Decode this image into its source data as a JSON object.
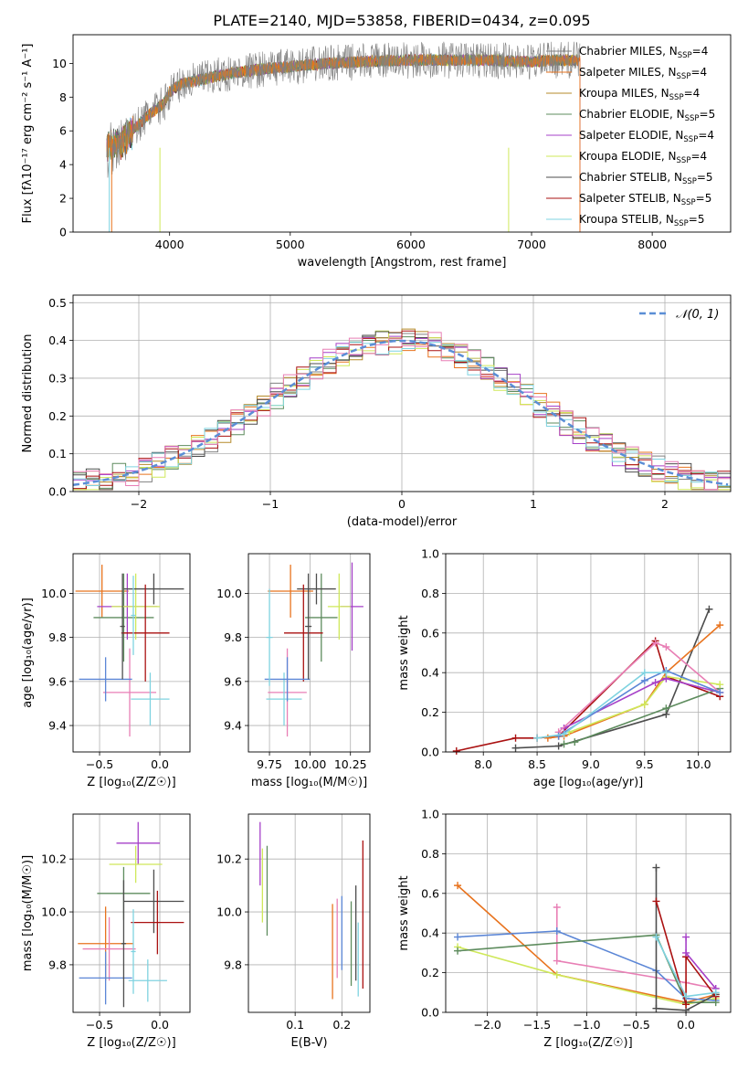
{
  "title": "PLATE=2140, MJD=53858, FIBERID=0434, z=0.095",
  "colors": {
    "chabrier_miles": "#808080",
    "salpeter_miles": "#e8731e",
    "kroupa_miles": "#b58a2a",
    "chabrier_elodie": "#5e8c5e",
    "salpeter_elodie": "#a640c8",
    "kroupa_elodie": "#cfe85a",
    "chabrier_stelib": "#4d4d4d",
    "salpeter_stelib": "#aa1111",
    "kroupa_stelib": "#7fd3e0",
    "pink": "#e87fb5",
    "blue": "#5b86d6",
    "normal": "#5b8ed6"
  },
  "chart_data": [
    {
      "id": "spectrum",
      "type": "line",
      "xlabel": "wavelength [Angstrom, rest frame]",
      "ylabel": "Flux [fλ10⁻¹⁷ erg cm⁻² s⁻¹ A⁻¹]",
      "xlim": [
        3200,
        8650
      ],
      "ylim": [
        0,
        11.7
      ],
      "xticks": [
        4000,
        5000,
        6000,
        7000,
        8000
      ],
      "yticks": [
        0,
        2,
        4,
        6,
        8,
        10
      ],
      "grid": false,
      "legend_position": "right",
      "continuum": {
        "x": [
          3480,
          3600,
          3800,
          3950,
          4000,
          4100,
          4300,
          4500,
          4800,
          5000,
          5300,
          5600,
          6000,
          6300,
          6600,
          7000,
          7200,
          7400
        ],
        "y": [
          5.0,
          5.3,
          6.8,
          7.6,
          8.3,
          8.8,
          9.1,
          9.4,
          9.7,
          9.8,
          10.0,
          10.1,
          10.2,
          10.2,
          10.2,
          10.1,
          10.2,
          10.2
        ]
      },
      "series": [
        {
          "label": "Chabrier MILES, N",
          "sub": "SSP",
          "suffix": "=4",
          "color_key": "chabrier_miles"
        },
        {
          "label": "Salpeter MILES, N",
          "sub": "SSP",
          "suffix": "=4",
          "color_key": "salpeter_miles"
        },
        {
          "label": "Kroupa MILES, N",
          "sub": "SSP",
          "suffix": "=4",
          "color_key": "kroupa_miles"
        },
        {
          "label": "Chabrier ELODIE, N",
          "sub": "SSP",
          "suffix": "=5",
          "color_key": "chabrier_elodie"
        },
        {
          "label": "Salpeter ELODIE, N",
          "sub": "SSP",
          "suffix": "=4",
          "color_key": "salpeter_elodie"
        },
        {
          "label": "Kroupa ELODIE, N",
          "sub": "SSP",
          "suffix": "=4",
          "color_key": "kroupa_elodie"
        },
        {
          "label": "Chabrier STELIB, N",
          "sub": "SSP",
          "suffix": "=5",
          "color_key": "chabrier_stelib"
        },
        {
          "label": "Salpeter STELIB, N",
          "sub": "SSP",
          "suffix": "=5",
          "color_key": "salpeter_stelib"
        },
        {
          "label": "Kroupa STELIB, N",
          "sub": "SSP",
          "suffix": "=5",
          "color_key": "kroupa_stelib"
        }
      ]
    },
    {
      "id": "residuals",
      "type": "line",
      "xlabel": "(data-model)/error",
      "ylabel": "Normed distribution",
      "xlim": [
        -2.5,
        2.5
      ],
      "ylim": [
        0,
        0.52
      ],
      "xticks": [
        -2,
        -1,
        0,
        1,
        2
      ],
      "yticks": [
        0.0,
        0.1,
        0.2,
        0.3,
        0.4,
        0.5
      ],
      "grid": true,
      "legend_position": "top-right",
      "legend_label": "𝒩(0, 1)",
      "bin_width": 0.1
    },
    {
      "id": "age_vs_z",
      "type": "scatter",
      "xlabel": "Z [log₁₀(Z/Z☉)]",
      "ylabel": "age  [log₁₀(age/yr)]",
      "xlim": [
        -0.72,
        0.25
      ],
      "ylim": [
        9.28,
        10.18
      ],
      "xticks": [
        -0.5,
        0.0
      ],
      "yticks": [
        9.4,
        9.6,
        9.8,
        10.0
      ],
      "grid": true,
      "points": [
        {
          "x": -0.48,
          "y": 10.01,
          "xerr": 0.22,
          "yerr": 0.12,
          "color_key": "salpeter_miles"
        },
        {
          "x": -0.25,
          "y": 9.55,
          "xerr": 0.22,
          "yerr": 0.2,
          "color_key": "pink"
        },
        {
          "x": -0.3,
          "y": 9.89,
          "xerr": 0.25,
          "yerr": 0.2,
          "color_key": "chabrier_elodie"
        },
        {
          "x": -0.27,
          "y": 9.94,
          "xerr": 0.25,
          "yerr": 0.15,
          "color_key": "salpeter_elodie"
        },
        {
          "x": -0.2,
          "y": 9.94,
          "xerr": 0.2,
          "yerr": 0.15,
          "color_key": "kroupa_elodie"
        },
        {
          "x": -0.05,
          "y": 10.02,
          "xerr": 0.25,
          "yerr": 0.07,
          "color_key": "chabrier_stelib"
        },
        {
          "x": -0.12,
          "y": 9.82,
          "xerr": 0.2,
          "yerr": 0.22,
          "color_key": "salpeter_stelib"
        },
        {
          "x": -0.08,
          "y": 9.52,
          "xerr": 0.16,
          "yerr": 0.12,
          "color_key": "kroupa_stelib"
        },
        {
          "x": -0.45,
          "y": 9.61,
          "xerr": 0.22,
          "yerr": 0.1,
          "color_key": "blue"
        },
        {
          "x": -0.31,
          "y": 9.85,
          "xerr": 0.02,
          "yerr": 0.24,
          "color_key": "chabrier_stelib"
        },
        {
          "x": -0.22,
          "y": 9.9,
          "xerr": 0.02,
          "yerr": 0.18,
          "color_key": "kroupa_stelib"
        }
      ]
    },
    {
      "id": "age_vs_mass",
      "type": "scatter",
      "xlabel": "mass [log₁₀(M/M☉)]",
      "ylabel": "",
      "xlim": [
        9.62,
        10.37
      ],
      "ylim": [
        9.28,
        10.18
      ],
      "xticks": [
        9.75,
        10.0,
        10.25
      ],
      "yticks": [
        9.4,
        9.6,
        9.8,
        10.0
      ],
      "grid": true,
      "points": [
        {
          "x": 9.88,
          "y": 10.01,
          "xerr": 0.14,
          "yerr": 0.12,
          "color_key": "salpeter_miles"
        },
        {
          "x": 9.86,
          "y": 9.55,
          "xerr": 0.12,
          "yerr": 0.2,
          "color_key": "pink"
        },
        {
          "x": 10.07,
          "y": 9.89,
          "xerr": 0.1,
          "yerr": 0.2,
          "color_key": "chabrier_elodie"
        },
        {
          "x": 10.26,
          "y": 9.94,
          "xerr": 0.07,
          "yerr": 0.2,
          "color_key": "salpeter_elodie"
        },
        {
          "x": 10.18,
          "y": 9.94,
          "xerr": 0.07,
          "yerr": 0.15,
          "color_key": "kroupa_elodie"
        },
        {
          "x": 10.04,
          "y": 10.02,
          "xerr": 0.12,
          "yerr": 0.07,
          "color_key": "chabrier_stelib"
        },
        {
          "x": 9.96,
          "y": 9.82,
          "xerr": 0.12,
          "yerr": 0.22,
          "color_key": "salpeter_stelib"
        },
        {
          "x": 9.84,
          "y": 9.52,
          "xerr": 0.11,
          "yerr": 0.12,
          "color_key": "kroupa_stelib"
        },
        {
          "x": 9.86,
          "y": 9.61,
          "xerr": 0.14,
          "yerr": 0.1,
          "color_key": "blue"
        },
        {
          "x": 9.75,
          "y": 9.8,
          "xerr": 0.02,
          "yerr": 0.22,
          "color_key": "kroupa_stelib"
        },
        {
          "x": 9.99,
          "y": 9.85,
          "xerr": 0.02,
          "yerr": 0.24,
          "color_key": "chabrier_stelib"
        }
      ]
    },
    {
      "id": "weight_vs_age",
      "type": "line",
      "xlabel": "age  [log₁₀(age/yr)]",
      "ylabel": "mass weight",
      "xlim": [
        7.65,
        10.3
      ],
      "ylim": [
        0,
        1.0
      ],
      "xticks": [
        8.0,
        8.5,
        9.0,
        9.5,
        10.0
      ],
      "yticks": [
        0.0,
        0.2,
        0.4,
        0.6,
        0.8,
        1.0
      ],
      "grid": true,
      "series": [
        {
          "color_key": "salpeter_stelib",
          "x": [
            7.75,
            8.3,
            8.5,
            8.7,
            9.6,
            9.7,
            10.2
          ],
          "y": [
            0.005,
            0.07,
            0.07,
            0.08,
            0.56,
            0.38,
            0.28
          ]
        },
        {
          "color_key": "chabrier_stelib",
          "x": [
            8.3,
            8.7,
            9.7,
            10.1
          ],
          "y": [
            0.02,
            0.03,
            0.19,
            0.72
          ]
        },
        {
          "color_key": "salpeter_miles",
          "x": [
            8.6,
            8.75,
            9.5,
            9.7,
            10.2
          ],
          "y": [
            0.07,
            0.08,
            0.24,
            0.4,
            0.64
          ]
        },
        {
          "color_key": "chabrier_elodie",
          "x": [
            8.75,
            8.85,
            9.7,
            10.2
          ],
          "y": [
            0.04,
            0.05,
            0.22,
            0.32
          ]
        },
        {
          "color_key": "kroupa_elodie",
          "x": [
            8.8,
            9.5,
            9.7,
            10.2
          ],
          "y": [
            0.1,
            0.24,
            0.38,
            0.34
          ]
        },
        {
          "color_key": "salpeter_elodie",
          "x": [
            8.75,
            9.6,
            9.7,
            10.2
          ],
          "y": [
            0.12,
            0.35,
            0.37,
            0.3
          ]
        },
        {
          "color_key": "pink",
          "x": [
            8.7,
            9.6,
            9.7,
            10.2
          ],
          "y": [
            0.1,
            0.55,
            0.53,
            0.3
          ]
        },
        {
          "color_key": "blue",
          "x": [
            8.7,
            9.5,
            9.7,
            10.2
          ],
          "y": [
            0.08,
            0.36,
            0.41,
            0.3
          ]
        },
        {
          "color_key": "kroupa_stelib",
          "x": [
            8.5,
            8.75,
            9.5,
            9.7
          ],
          "y": [
            0.07,
            0.09,
            0.4,
            0.4
          ]
        }
      ]
    },
    {
      "id": "mass_vs_z",
      "type": "scatter",
      "xlabel": "Z [log₁₀(Z/Z☉)]",
      "ylabel": "mass [log₁₀(M/M☉)]",
      "xlim": [
        -0.72,
        0.25
      ],
      "ylim": [
        9.62,
        10.37
      ],
      "xticks": [
        -0.5,
        0.0
      ],
      "yticks": [
        9.8,
        10.0,
        10.2
      ],
      "grid": true,
      "points": [
        {
          "x": -0.45,
          "y": 9.88,
          "xerr": 0.23,
          "yerr": 0.14,
          "color_key": "salpeter_miles"
        },
        {
          "x": -0.42,
          "y": 9.86,
          "xerr": 0.22,
          "yerr": 0.12,
          "color_key": "pink"
        },
        {
          "x": -0.3,
          "y": 10.07,
          "xerr": 0.22,
          "yerr": 0.1,
          "color_key": "chabrier_elodie"
        },
        {
          "x": -0.18,
          "y": 10.26,
          "xerr": 0.18,
          "yerr": 0.08,
          "color_key": "salpeter_elodie"
        },
        {
          "x": -0.2,
          "y": 10.18,
          "xerr": 0.22,
          "yerr": 0.07,
          "color_key": "kroupa_elodie"
        },
        {
          "x": -0.05,
          "y": 10.04,
          "xerr": 0.25,
          "yerr": 0.12,
          "color_key": "chabrier_stelib"
        },
        {
          "x": -0.02,
          "y": 9.96,
          "xerr": 0.22,
          "yerr": 0.12,
          "color_key": "salpeter_stelib"
        },
        {
          "x": -0.1,
          "y": 9.74,
          "xerr": 0.16,
          "yerr": 0.08,
          "color_key": "kroupa_stelib"
        },
        {
          "x": -0.45,
          "y": 9.75,
          "xerr": 0.22,
          "yerr": 0.1,
          "color_key": "blue"
        },
        {
          "x": -0.22,
          "y": 9.85,
          "xerr": 0.02,
          "yerr": 0.16,
          "color_key": "kroupa_stelib"
        },
        {
          "x": -0.3,
          "y": 9.88,
          "xerr": 0.02,
          "yerr": 0.24,
          "color_key": "chabrier_stelib"
        }
      ]
    },
    {
      "id": "mass_vs_ebv",
      "type": "scatter",
      "xlabel": "E(B-V)",
      "ylabel": "",
      "xlim": [
        0.0,
        0.26
      ],
      "ylim": [
        9.62,
        10.37
      ],
      "xticks": [
        0.1,
        0.2
      ],
      "yticks": [
        9.8,
        10.0,
        10.2
      ],
      "grid": true,
      "points": [
        {
          "x": 0.025,
          "y": 10.22,
          "xerr": 0,
          "yerr": 0.12,
          "color_key": "salpeter_elodie"
        },
        {
          "x": 0.03,
          "y": 10.1,
          "xerr": 0,
          "yerr": 0.14,
          "color_key": "kroupa_elodie"
        },
        {
          "x": 0.04,
          "y": 10.08,
          "xerr": 0,
          "yerr": 0.17,
          "color_key": "chabrier_elodie"
        },
        {
          "x": 0.18,
          "y": 9.85,
          "xerr": 0,
          "yerr": 0.18,
          "color_key": "salpeter_miles"
        },
        {
          "x": 0.19,
          "y": 9.9,
          "xerr": 0,
          "yerr": 0.15,
          "color_key": "pink"
        },
        {
          "x": 0.2,
          "y": 9.92,
          "xerr": 0,
          "yerr": 0.14,
          "color_key": "blue"
        },
        {
          "x": 0.22,
          "y": 9.88,
          "xerr": 0,
          "yerr": 0.16,
          "color_key": "chabrier_elodie"
        },
        {
          "x": 0.23,
          "y": 9.92,
          "xerr": 0,
          "yerr": 0.18,
          "color_key": "chabrier_stelib"
        },
        {
          "x": 0.235,
          "y": 9.82,
          "xerr": 0,
          "yerr": 0.14,
          "color_key": "kroupa_stelib"
        },
        {
          "x": 0.245,
          "y": 9.99,
          "xerr": 0,
          "yerr": 0.28,
          "color_key": "salpeter_stelib"
        }
      ]
    },
    {
      "id": "weight_vs_z",
      "type": "line",
      "xlabel": "Z [log₁₀(Z/Z☉)]",
      "ylabel": "mass weight",
      "xlim": [
        -2.42,
        0.45
      ],
      "ylim": [
        0,
        1.0
      ],
      "xticks": [
        -2.0,
        -1.5,
        -1.0,
        -0.5,
        0.0
      ],
      "yticks": [
        0.0,
        0.2,
        0.4,
        0.6,
        0.8,
        1.0
      ],
      "grid": true,
      "series": [
        {
          "color_key": "salpeter_miles",
          "x": [
            -2.3,
            -1.3,
            0.0,
            0.3
          ],
          "y": [
            0.64,
            0.19,
            0.05,
            0.09
          ]
        },
        {
          "color_key": "kroupa_elodie",
          "x": [
            -2.3,
            -1.3,
            0.0,
            0.3
          ],
          "y": [
            0.33,
            0.19,
            0.04,
            0.07
          ]
        },
        {
          "color_key": "pink",
          "x": [
            -1.3,
            -1.3,
            0.0,
            0.3
          ],
          "y": [
            0.53,
            0.26,
            0.15,
            0.12
          ]
        },
        {
          "color_key": "blue",
          "x": [
            -2.3,
            -1.3,
            -0.3,
            0.0,
            0.3
          ],
          "y": [
            0.38,
            0.41,
            0.21,
            0.07,
            0.06
          ]
        },
        {
          "color_key": "chabrier_elodie",
          "x": [
            -2.3,
            -0.3,
            0.0,
            0.3
          ],
          "y": [
            0.31,
            0.39,
            0.05,
            0.05
          ]
        },
        {
          "color_key": "chabrier_stelib",
          "x": [
            -0.3,
            -0.3,
            0.0,
            0.3
          ],
          "y": [
            0.73,
            0.02,
            0.01,
            0.09
          ]
        },
        {
          "color_key": "salpeter_stelib",
          "x": [
            -0.3,
            0.0,
            0.0,
            0.3
          ],
          "y": [
            0.56,
            0.04,
            0.28,
            0.08
          ]
        },
        {
          "color_key": "salpeter_elodie",
          "x": [
            0.0,
            0.0,
            0.3
          ],
          "y": [
            0.38,
            0.3,
            0.12
          ]
        },
        {
          "color_key": "kroupa_stelib",
          "x": [
            -0.3,
            0.0,
            0.3
          ],
          "y": [
            0.38,
            0.08,
            0.1
          ]
        }
      ]
    }
  ]
}
